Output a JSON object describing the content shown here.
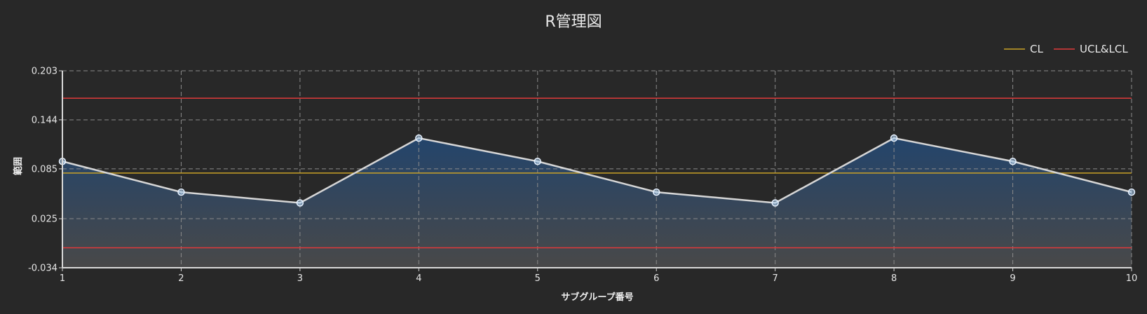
{
  "chart_data": {
    "type": "line",
    "title": "R管理図",
    "xlabel": "サブグループ番号",
    "ylabel": "範囲",
    "x": [
      1,
      2,
      3,
      4,
      5,
      6,
      7,
      8,
      9,
      10
    ],
    "xticks": [
      "1",
      "2",
      "3",
      "4",
      "5",
      "6",
      "7",
      "8",
      "9",
      "10"
    ],
    "xlim": [
      1,
      10
    ],
    "ylim": [
      -0.034,
      0.203
    ],
    "yticks": [
      "0.203",
      "0.144",
      "0.085",
      "0.025",
      "-0.034"
    ],
    "ytick_values": [
      0.203,
      0.144,
      0.085,
      0.025,
      -0.034
    ],
    "grid": true,
    "legend": {
      "placement": "top-right",
      "entries": [
        {
          "label": "CL",
          "color": "#c9a227"
        },
        {
          "label": "UCL&LCL",
          "color": "#e03a3a"
        }
      ]
    },
    "series": [
      {
        "values": [
          0.094,
          0.057,
          0.044,
          0.122,
          0.094,
          0.057,
          0.044,
          0.122,
          0.094,
          0.057
        ],
        "color": "#d6d6d6",
        "marker_color": "#a9cdf0",
        "fill_top": "#23466f",
        "fill_bottom": "#4a4a4a"
      }
    ],
    "reference_lines": [
      {
        "name": "CL",
        "value": 0.08,
        "color": "#c9a227"
      },
      {
        "name": "UCL",
        "value": 0.17,
        "color": "#e03a3a"
      },
      {
        "name": "LCL",
        "value": -0.01,
        "color": "#e03a3a"
      }
    ]
  }
}
